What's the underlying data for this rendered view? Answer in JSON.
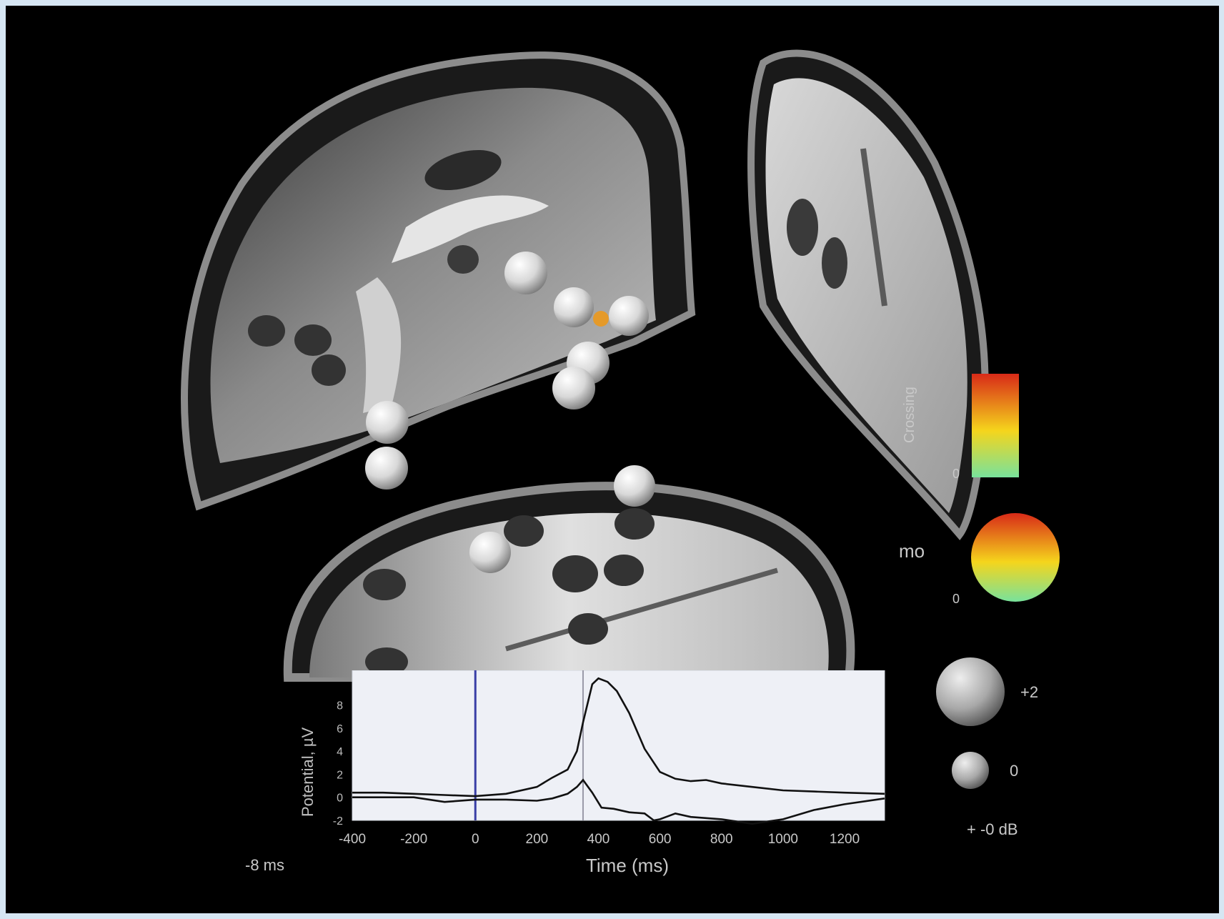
{
  "colors": {
    "background": "#000000",
    "border": "#d6e6f3",
    "plot_background": "#eef0f6",
    "marker_line": "#3a3fa6",
    "scale_top": "#e0301a",
    "scale_mid": "#f6d21a",
    "scale_bottom": "#7fe39a"
  },
  "labels": {
    "left_time": "-8 ms",
    "colorbar_axis": "Crossing",
    "colorbar_zero": "0",
    "sphere_legend_label": "mo",
    "sphere_legend_zero": "0",
    "size_large": "+2",
    "size_small": "0",
    "size_neg": "+ -0 dB"
  },
  "chart_data": {
    "type": "line",
    "xlabel": "Time (ms)",
    "ylabel": "Potential, µV",
    "xlim": [
      -400,
      1330
    ],
    "ylim": [
      -2,
      11
    ],
    "x_ticks": [
      "-400",
      "-200",
      "0",
      "200",
      "400",
      "600",
      "800",
      "1000",
      "1200"
    ],
    "y_ticks": [
      "-2",
      "0",
      "2",
      "4",
      "6",
      "8"
    ],
    "vertical_markers": [
      0,
      350
    ],
    "series": [
      {
        "x": [
          -400,
          -300,
          -200,
          -100,
          0,
          100,
          200,
          250,
          300,
          330,
          350,
          380,
          400,
          430,
          460,
          500,
          550,
          600,
          650,
          700,
          750,
          800,
          900,
          1000,
          1100,
          1200,
          1330
        ],
        "y": [
          0.4,
          0.4,
          0.3,
          0.2,
          0.1,
          0.3,
          0.9,
          1.7,
          2.4,
          4.0,
          6.5,
          9.8,
          10.3,
          10.0,
          9.2,
          7.3,
          4.2,
          2.2,
          1.6,
          1.4,
          1.5,
          1.2,
          0.9,
          0.6,
          0.5,
          0.4,
          0.3
        ]
      },
      {
        "x": [
          -400,
          -300,
          -200,
          -100,
          0,
          100,
          200,
          250,
          300,
          330,
          350,
          380,
          410,
          450,
          500,
          550,
          580,
          600,
          650,
          700,
          800,
          900,
          1000,
          1100,
          1200,
          1330
        ],
        "y": [
          0.0,
          0.0,
          0.0,
          -0.4,
          -0.2,
          -0.2,
          -0.3,
          -0.1,
          0.3,
          0.9,
          1.5,
          0.4,
          -0.9,
          -1.0,
          -1.3,
          -1.4,
          -2.0,
          -1.9,
          -1.4,
          -1.7,
          -1.9,
          -2.3,
          -1.9,
          -1.1,
          -0.6,
          -0.1
        ]
      }
    ]
  }
}
